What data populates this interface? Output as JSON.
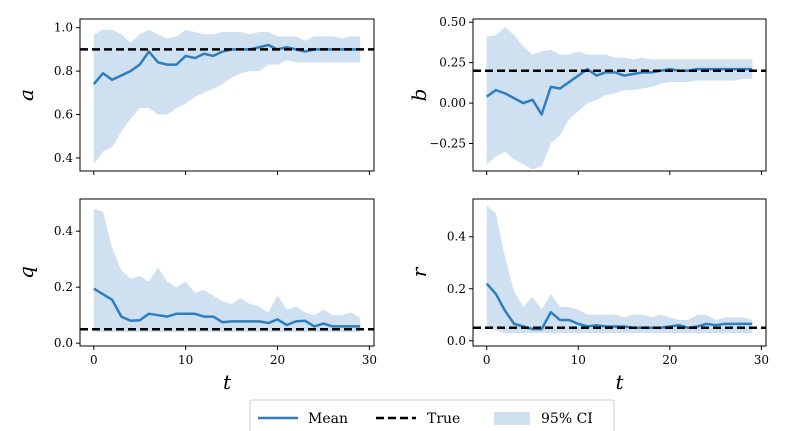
{
  "colors": {
    "mean": "#2e7ebf",
    "ci": "#cfe0f1",
    "true": "#000000"
  },
  "legend": {
    "mean_label": "Mean",
    "true_label": "True",
    "ci_label": "95% CI"
  },
  "chart_data": [
    {
      "type": "line",
      "panel": "top-left",
      "ylabel": "a",
      "xlabel": "",
      "xlim": [
        -1.5,
        30.5
      ],
      "ylim": [
        0.34,
        1.04
      ],
      "xticks": [
        0,
        10,
        20,
        30
      ],
      "yticks": [
        0.4,
        0.6,
        0.8,
        1.0
      ],
      "ytick_labels": [
        "0.4",
        "0.6",
        "0.8",
        "1.0"
      ],
      "x": [
        0,
        1,
        2,
        3,
        4,
        5,
        6,
        7,
        8,
        9,
        10,
        11,
        12,
        13,
        14,
        15,
        16,
        17,
        18,
        19,
        20,
        21,
        22,
        23,
        24,
        25,
        26,
        27,
        28,
        29
      ],
      "mean": [
        0.74,
        0.79,
        0.76,
        0.78,
        0.8,
        0.83,
        0.89,
        0.84,
        0.83,
        0.83,
        0.87,
        0.86,
        0.88,
        0.87,
        0.89,
        0.9,
        0.9,
        0.9,
        0.91,
        0.92,
        0.9,
        0.91,
        0.9,
        0.89,
        0.9,
        0.9,
        0.9,
        0.9,
        0.9,
        0.9
      ],
      "ci_lower": [
        0.37,
        0.43,
        0.45,
        0.52,
        0.58,
        0.63,
        0.63,
        0.6,
        0.6,
        0.63,
        0.65,
        0.68,
        0.7,
        0.72,
        0.74,
        0.77,
        0.79,
        0.8,
        0.8,
        0.83,
        0.83,
        0.85,
        0.84,
        0.84,
        0.84,
        0.84,
        0.84,
        0.84,
        0.84,
        0.84
      ],
      "ci_upper": [
        0.97,
        0.99,
        0.99,
        0.97,
        0.93,
        0.97,
        0.99,
        0.97,
        0.95,
        0.96,
        0.99,
        0.98,
        0.97,
        0.97,
        0.98,
        0.98,
        0.98,
        0.97,
        0.98,
        0.98,
        0.96,
        0.96,
        0.96,
        0.94,
        0.96,
        0.96,
        0.96,
        0.95,
        0.96,
        0.96
      ],
      "true": 0.9
    },
    {
      "type": "line",
      "panel": "top-right",
      "ylabel": "b",
      "xlabel": "",
      "xlim": [
        -1.5,
        30.5
      ],
      "ylim": [
        -0.42,
        0.52
      ],
      "xticks": [
        0,
        10,
        20,
        30
      ],
      "yticks": [
        -0.25,
        0.0,
        0.25,
        0.5
      ],
      "ytick_labels": [
        "−0.25",
        "0.00",
        "0.25",
        "0.50"
      ],
      "x": [
        0,
        1,
        2,
        3,
        4,
        5,
        6,
        7,
        8,
        9,
        10,
        11,
        12,
        13,
        14,
        15,
        16,
        17,
        18,
        19,
        20,
        21,
        22,
        23,
        24,
        25,
        26,
        27,
        28,
        29
      ],
      "mean": [
        0.04,
        0.08,
        0.06,
        0.03,
        0.0,
        0.02,
        -0.07,
        0.1,
        0.09,
        0.13,
        0.17,
        0.21,
        0.17,
        0.19,
        0.19,
        0.17,
        0.18,
        0.19,
        0.19,
        0.2,
        0.21,
        0.2,
        0.2,
        0.21,
        0.21,
        0.21,
        0.21,
        0.21,
        0.21,
        0.21
      ],
      "ci_lower": [
        -0.38,
        -0.33,
        -0.3,
        -0.35,
        -0.38,
        -0.41,
        -0.39,
        -0.25,
        -0.2,
        -0.1,
        -0.05,
        0.0,
        0.02,
        0.05,
        0.06,
        0.08,
        0.08,
        0.09,
        0.1,
        0.12,
        0.13,
        0.13,
        0.13,
        0.14,
        0.14,
        0.14,
        0.14,
        0.14,
        0.15,
        0.15
      ],
      "ci_upper": [
        0.41,
        0.42,
        0.47,
        0.42,
        0.35,
        0.3,
        0.32,
        0.33,
        0.3,
        0.3,
        0.32,
        0.3,
        0.3,
        0.3,
        0.28,
        0.28,
        0.27,
        0.28,
        0.27,
        0.27,
        0.27,
        0.27,
        0.27,
        0.27,
        0.27,
        0.27,
        0.27,
        0.27,
        0.27,
        0.27
      ],
      "true": 0.2
    },
    {
      "type": "line",
      "panel": "bottom-left",
      "ylabel": "q",
      "xlabel": "t",
      "xlim": [
        -1.5,
        30.5
      ],
      "ylim": [
        -0.01,
        0.515
      ],
      "xticks": [
        0,
        10,
        20,
        30
      ],
      "xtick_labels": [
        "0",
        "10",
        "20",
        "30"
      ],
      "yticks": [
        0.0,
        0.2,
        0.4
      ],
      "ytick_labels": [
        "0.0",
        "0.2",
        "0.4"
      ],
      "x": [
        0,
        1,
        2,
        3,
        4,
        5,
        6,
        7,
        8,
        9,
        10,
        11,
        12,
        13,
        14,
        15,
        16,
        17,
        18,
        19,
        20,
        21,
        22,
        23,
        24,
        25,
        26,
        27,
        28,
        29
      ],
      "mean": [
        0.195,
        0.175,
        0.155,
        0.095,
        0.08,
        0.082,
        0.105,
        0.1,
        0.095,
        0.105,
        0.105,
        0.105,
        0.095,
        0.095,
        0.075,
        0.078,
        0.078,
        0.078,
        0.078,
        0.072,
        0.085,
        0.065,
        0.078,
        0.08,
        0.06,
        0.07,
        0.06,
        0.06,
        0.06,
        0.06
      ],
      "ci_lower": [
        0.04,
        0.04,
        0.04,
        0.04,
        0.04,
        0.04,
        0.04,
        0.04,
        0.04,
        0.04,
        0.04,
        0.04,
        0.04,
        0.04,
        0.04,
        0.04,
        0.04,
        0.04,
        0.04,
        0.04,
        0.04,
        0.04,
        0.04,
        0.04,
        0.04,
        0.04,
        0.04,
        0.04,
        0.04,
        0.04
      ],
      "ci_upper": [
        0.48,
        0.47,
        0.34,
        0.26,
        0.23,
        0.24,
        0.22,
        0.27,
        0.22,
        0.2,
        0.22,
        0.18,
        0.19,
        0.17,
        0.15,
        0.14,
        0.16,
        0.14,
        0.13,
        0.11,
        0.17,
        0.12,
        0.13,
        0.11,
        0.1,
        0.12,
        0.1,
        0.1,
        0.11,
        0.09
      ],
      "true": 0.05
    },
    {
      "type": "line",
      "panel": "bottom-right",
      "ylabel": "r",
      "xlabel": "t",
      "xlim": [
        -1.5,
        30.5
      ],
      "ylim": [
        -0.02,
        0.545
      ],
      "xticks": [
        0,
        10,
        20,
        30
      ],
      "xtick_labels": [
        "0",
        "10",
        "20",
        "30"
      ],
      "yticks": [
        0.0,
        0.2,
        0.4
      ],
      "ytick_labels": [
        "0.0",
        "0.2",
        "0.4"
      ],
      "x": [
        0,
        1,
        2,
        3,
        4,
        5,
        6,
        7,
        8,
        9,
        10,
        11,
        12,
        13,
        14,
        15,
        16,
        17,
        18,
        19,
        20,
        21,
        22,
        23,
        24,
        25,
        26,
        27,
        28,
        29
      ],
      "mean": [
        0.22,
        0.18,
        0.115,
        0.065,
        0.055,
        0.045,
        0.045,
        0.11,
        0.08,
        0.08,
        0.065,
        0.055,
        0.06,
        0.055,
        0.055,
        0.055,
        0.05,
        0.05,
        0.05,
        0.05,
        0.055,
        0.06,
        0.05,
        0.055,
        0.065,
        0.06,
        0.065,
        0.065,
        0.065,
        0.065
      ],
      "ci_lower": [
        0.05,
        0.04,
        0.03,
        0.03,
        0.03,
        0.03,
        0.03,
        0.03,
        0.03,
        0.03,
        0.03,
        0.03,
        0.03,
        0.03,
        0.03,
        0.03,
        0.03,
        0.03,
        0.03,
        0.03,
        0.03,
        0.03,
        0.03,
        0.03,
        0.03,
        0.03,
        0.03,
        0.03,
        0.03,
        0.03
      ],
      "ci_upper": [
        0.52,
        0.49,
        0.32,
        0.19,
        0.13,
        0.17,
        0.12,
        0.18,
        0.13,
        0.13,
        0.12,
        0.1,
        0.1,
        0.1,
        0.1,
        0.09,
        0.1,
        0.1,
        0.09,
        0.1,
        0.09,
        0.08,
        0.08,
        0.1,
        0.1,
        0.08,
        0.09,
        0.09,
        0.09,
        0.08
      ],
      "true": 0.05
    }
  ]
}
